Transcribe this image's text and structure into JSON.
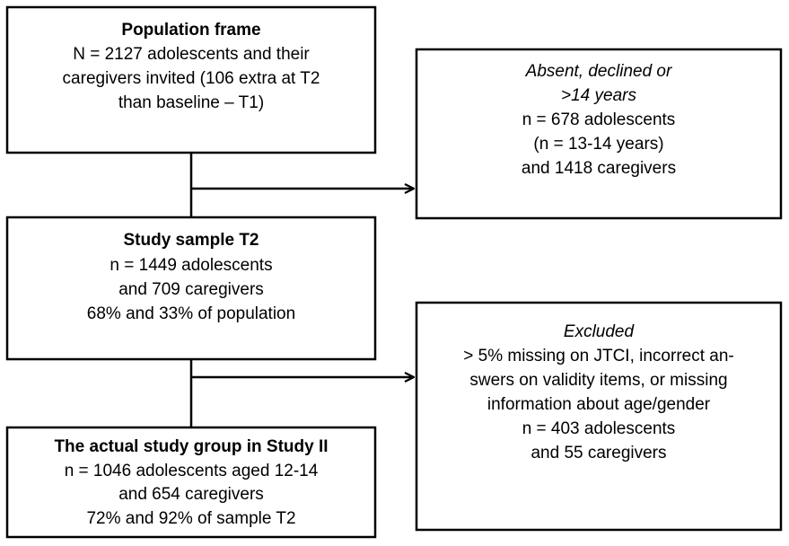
{
  "nodes": [
    {
      "lines": [
        "Population frame",
        "N = 2127 adolescents and their",
        "caregivers invited (106 extra at T2",
        "than baseline – T1)"
      ]
    },
    {
      "lines": [
        "Absent, declined or",
        ">14 years",
        "n = 678 adolescents",
        "(n = 13-14 years)",
        "and 1418 caregivers"
      ]
    },
    {
      "lines": [
        "Study sample T2",
        "n = 1449 adolescents",
        "and 709 caregivers",
        "68% and 33% of population"
      ]
    },
    {
      "lines": [
        "Excluded",
        "> 5% missing on JTCI, incorrect an-",
        "swers on validity items, or missing",
        "information about age/gender",
        "n = 403 adolescents",
        "and 55 caregivers"
      ]
    },
    {
      "lines": [
        "The actual study group in Study II",
        "n = 1046 adolescents aged 12-14",
        "and 654 caregivers",
        "72% and 92% of sample T2"
      ]
    }
  ]
}
